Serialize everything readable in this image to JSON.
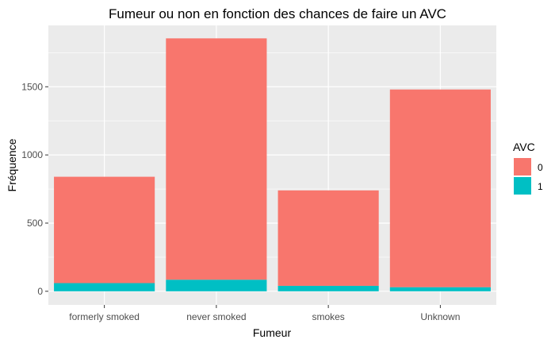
{
  "chart_data": {
    "type": "bar",
    "stacked": true,
    "title": "Fumeur ou non en fonction des chances de faire un AVC",
    "xlabel": "Fumeur",
    "ylabel": "Fréquence",
    "categories": [
      "formerly smoked",
      "never smoked",
      "smokes",
      "Unknown"
    ],
    "series": [
      {
        "name": "0",
        "values": [
          780,
          1770,
          700,
          1450
        ]
      },
      {
        "name": "1",
        "values": [
          60,
          85,
          40,
          30
        ]
      }
    ],
    "ylim": [
      -100,
      1950
    ],
    "yticks": [
      0,
      500,
      1000,
      1500
    ],
    "grid": true,
    "legend": {
      "title": "AVC",
      "position": "right"
    },
    "colors": {
      "0": "#F8766D",
      "1": "#00BFC4",
      "panel": "#EBEBEB",
      "grid": "#FFFFFF",
      "text": "#4D4D4D"
    }
  }
}
